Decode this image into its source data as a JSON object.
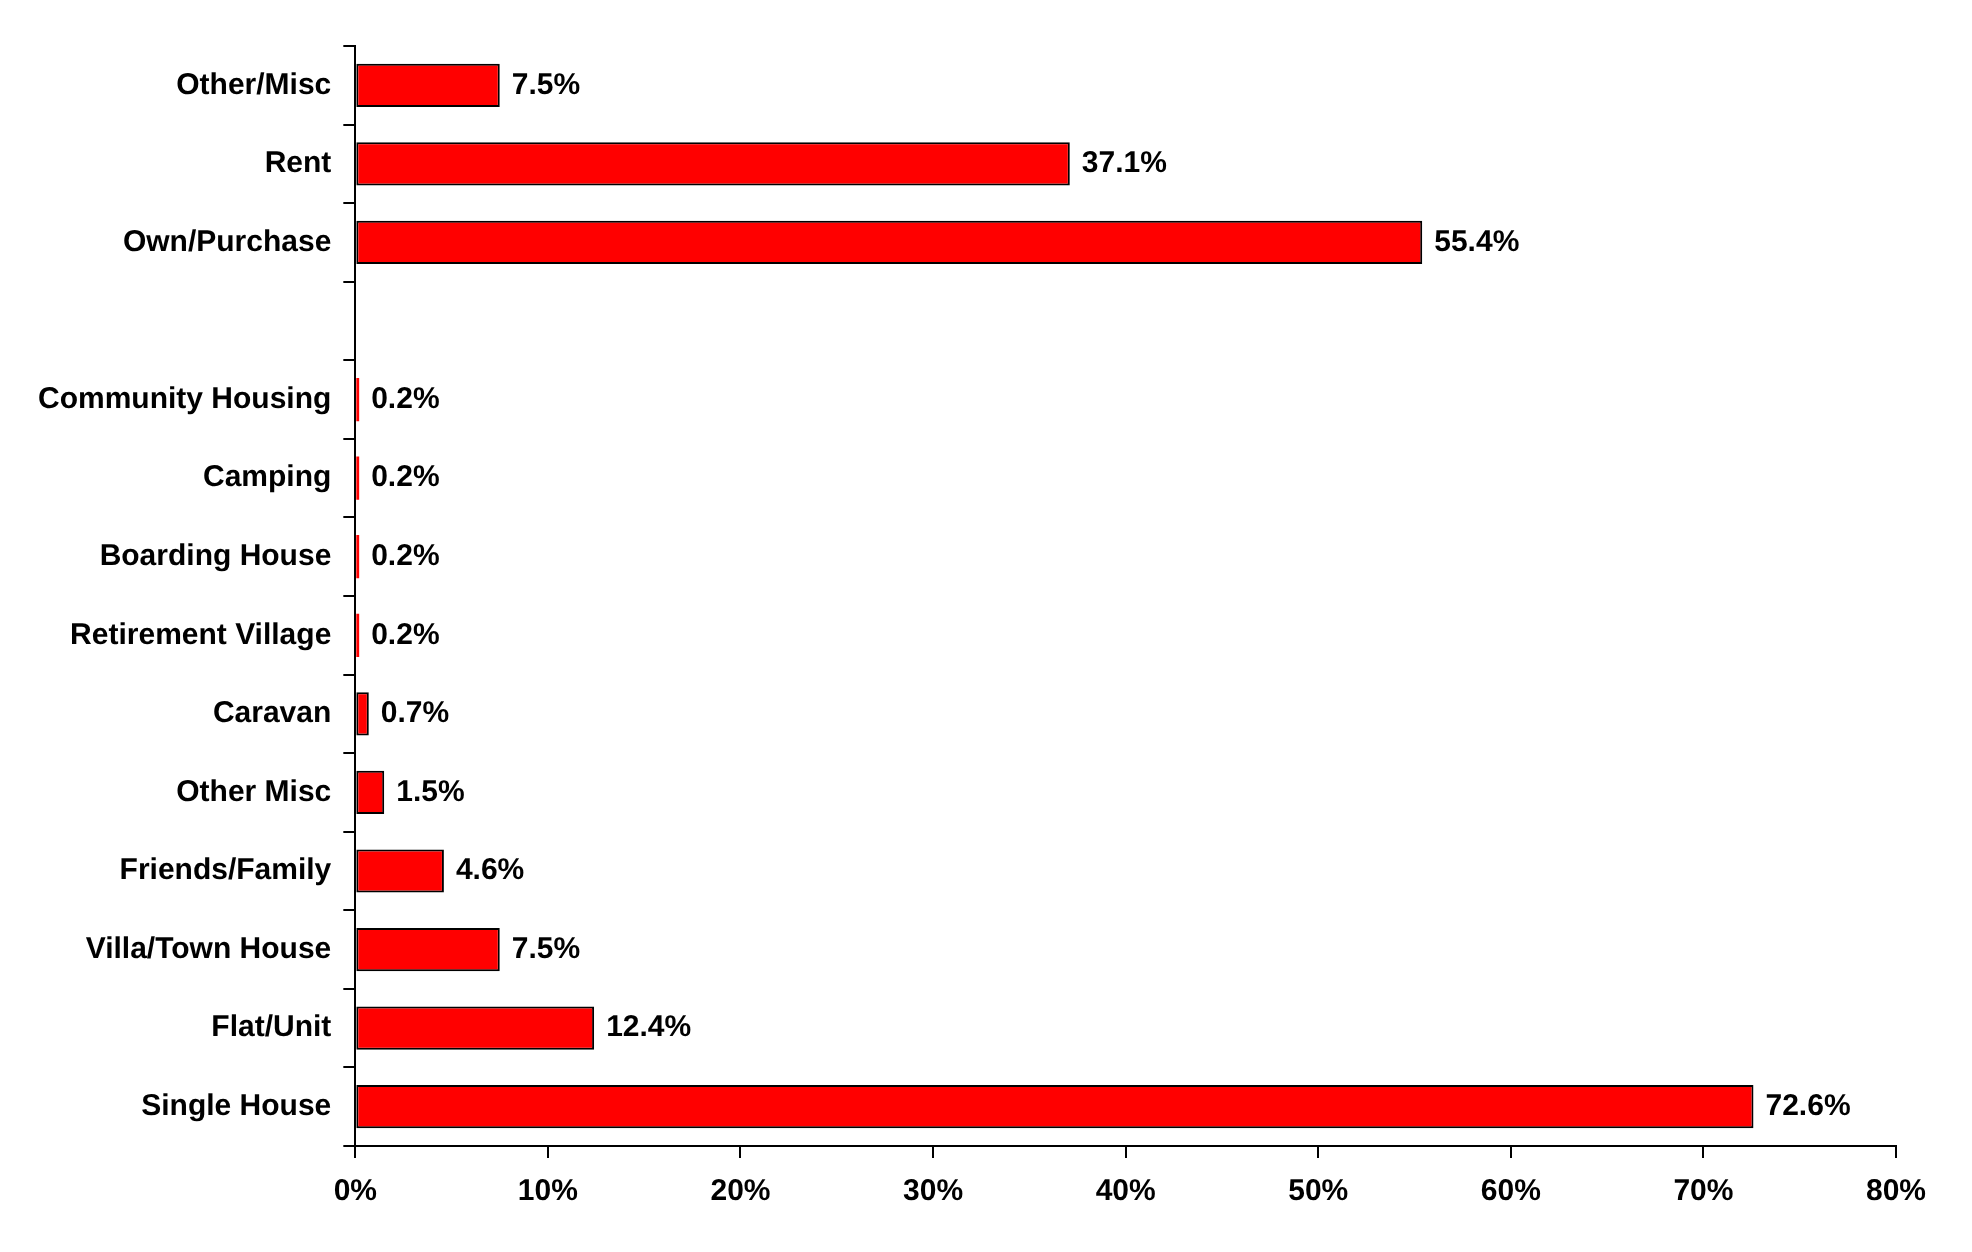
{
  "chart_data": {
    "type": "bar",
    "orientation": "horizontal",
    "categories": [
      "Other/Misc",
      "Rent",
      "Own/Purchase",
      null,
      "Community Housing",
      "Camping",
      "Boarding House",
      "Retirement Village",
      "Caravan",
      "Other Misc",
      "Friends/Family",
      "Villa/Town House",
      "Flat/Unit",
      "Single House"
    ],
    "values": [
      7.5,
      37.1,
      55.4,
      null,
      0.2,
      0.2,
      0.2,
      0.2,
      0.7,
      1.5,
      4.6,
      7.5,
      12.4,
      72.6
    ],
    "value_labels": [
      "7.5%",
      "37.1%",
      "55.4%",
      null,
      "0.2%",
      "0.2%",
      "0.2%",
      "0.2%",
      "0.7%",
      "1.5%",
      "4.6%",
      "7.5%",
      "12.4%",
      "72.6%"
    ],
    "color": "#ff0000",
    "xlim": [
      0,
      80
    ],
    "xticks": [
      {
        "value": 0,
        "label": "0%"
      },
      {
        "value": 10,
        "label": "10%"
      },
      {
        "value": 20,
        "label": "20%"
      },
      {
        "value": 30,
        "label": "30%"
      },
      {
        "value": 40,
        "label": "40%"
      },
      {
        "value": 50,
        "label": "50%"
      },
      {
        "value": 60,
        "label": "60%"
      },
      {
        "value": 70,
        "label": "70%"
      },
      {
        "value": 80,
        "label": "80%"
      }
    ]
  }
}
